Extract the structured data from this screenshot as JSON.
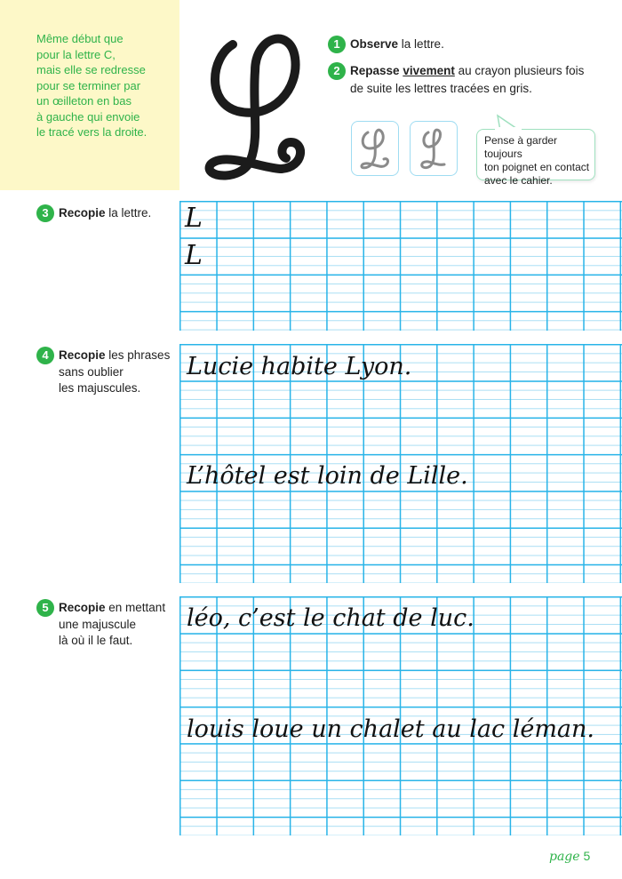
{
  "intro": {
    "lines": [
      "Même début que",
      "pour la lettre C,",
      "mais elle se redresse",
      "pour se terminer par",
      "un œilleton en bas",
      "à gauche qui envoie",
      "le tracé vers la droite."
    ]
  },
  "letter": "L",
  "steps": [
    {
      "number": "1",
      "bold": "Observe",
      "rest": " la lettre."
    },
    {
      "number": "2",
      "bold": "Repasse",
      "underlined": "vivement",
      "rest": " au crayon plusieurs fois",
      "line2": "de suite les lettres tracées en gris."
    },
    {
      "number": "3",
      "bold": "Recopie",
      "rest": " la lettre."
    },
    {
      "number": "4",
      "bold": "Recopie",
      "rest": " les phrases",
      "line2": "sans oublier",
      "line3": "les majuscules."
    },
    {
      "number": "5",
      "bold": "Recopie",
      "rest": " en mettant",
      "line2": "une majuscule",
      "line3": "là où il le faut."
    }
  ],
  "tip": {
    "lines": [
      "Pense à garder toujours",
      "ton poignet en contact",
      "avec le cahier."
    ]
  },
  "exercise3": {
    "models": [
      "L",
      "L"
    ]
  },
  "exercise4": {
    "sentences": [
      "Lucie habite Lyon.",
      "L’hôtel est loin de Lille."
    ]
  },
  "exercise5": {
    "sentences": [
      "léo, c’est le chat de luc.",
      "louis loue un chalet au lac léman."
    ]
  },
  "footer": {
    "page_word": "page",
    "page_number": "5"
  },
  "colors": {
    "accent": "#2fb34a",
    "grid_major": "#28b4e8",
    "grid_minor": "#a9def4",
    "intro_bg": "#fdf8c8"
  }
}
